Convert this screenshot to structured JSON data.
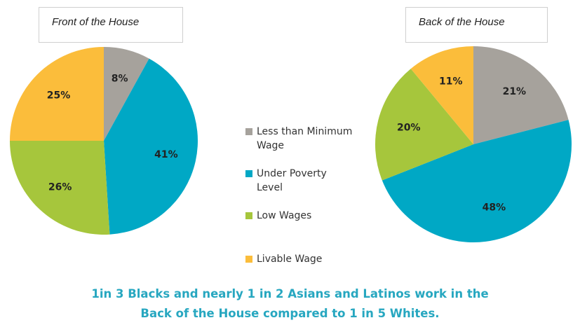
{
  "chart_data": [
    {
      "type": "pie",
      "title": "Front of the House",
      "categories": [
        "Less than Minimum Wage",
        "Under Poverty Level",
        "Low Wages",
        "Livable Wage"
      ],
      "values": [
        8,
        41,
        26,
        25
      ],
      "value_labels": [
        "8%",
        "41%",
        "26%",
        "25%"
      ],
      "colors": [
        "#a6a29c",
        "#00a8c5",
        "#a6c63c",
        "#fbbd3b"
      ]
    },
    {
      "type": "pie",
      "title": "Back of the House",
      "categories": [
        "Less than Minimum Wage",
        "Under Poverty Level",
        "Low Wages",
        "Livable Wage"
      ],
      "values": [
        21,
        48,
        20,
        11
      ],
      "value_labels": [
        "21%",
        "48%",
        "20%",
        "11%"
      ],
      "colors": [
        "#a6a29c",
        "#00a8c5",
        "#a6c63c",
        "#fbbd3b"
      ]
    }
  ],
  "caption": "1in 3 Blacks and nearly 1 in 2 Asians and Latinos work in the Back of the House compared to 1 in 5 Whites."
}
